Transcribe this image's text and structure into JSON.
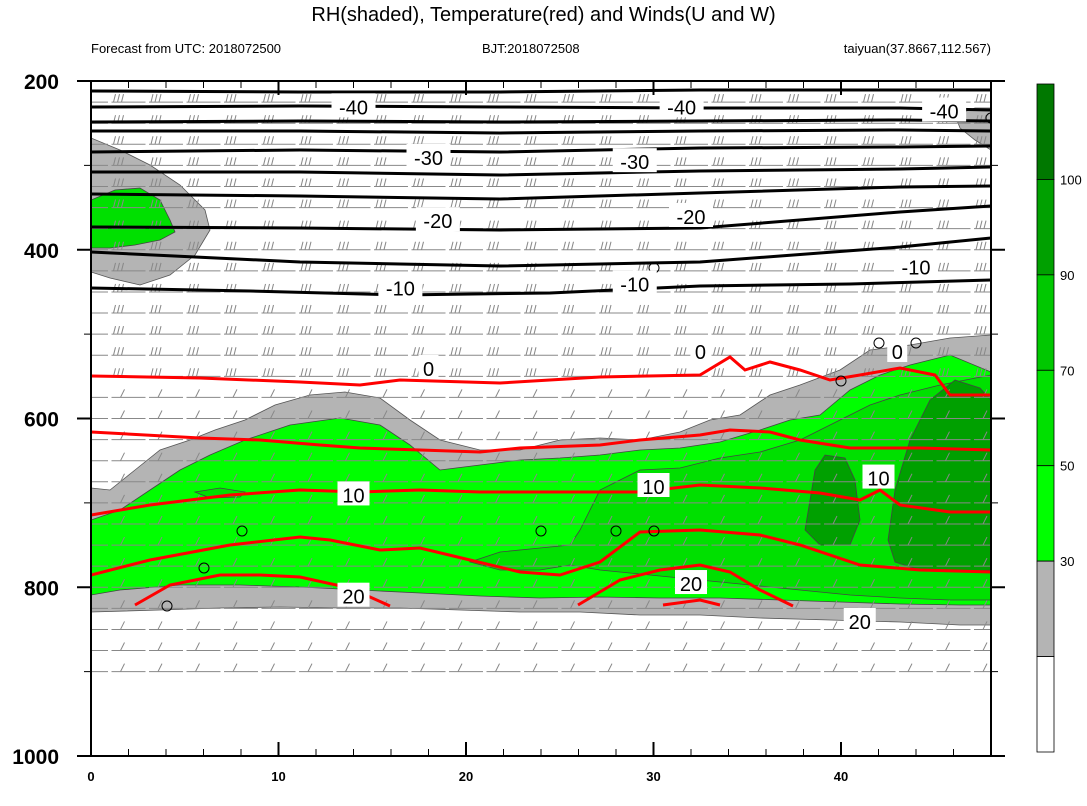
{
  "chart_data": {
    "type": "contour",
    "title": "RH(shaded), Temperature(red) and Winds(U and W)",
    "subtitle_left": "Forecast from UTC: 2018072500",
    "subtitle_center": "BJT:2018072508",
    "subtitle_right": "taiyuan(37.8667,112.567)",
    "x_ticks": [
      "0",
      "10",
      "20",
      "30",
      "40"
    ],
    "y_ticks": [
      "200",
      "400",
      "600",
      "800",
      "1000"
    ],
    "xlim": [
      0,
      48
    ],
    "ylim_pressure_hpa": [
      200,
      1000
    ],
    "colorbar": {
      "levels": [
        "30",
        "50",
        "70",
        "90",
        "100"
      ],
      "colors": [
        "#ffffff",
        "#b4b4b4",
        "#00ff00",
        "#00e000",
        "#00c800",
        "#00a000",
        "#007800"
      ]
    },
    "temperature_contour_labels": {
      "black": [
        {
          "text": "-40",
          "x": 14,
          "p": 230
        },
        {
          "text": "-40",
          "x": 31.5,
          "p": 230
        },
        {
          "text": "-40",
          "x": 45.5,
          "p": 235
        },
        {
          "text": "-30",
          "x": 18,
          "p": 290
        },
        {
          "text": "-30",
          "x": 29,
          "p": 295
        },
        {
          "text": "-20",
          "x": 18.5,
          "p": 365
        },
        {
          "text": "-20",
          "x": 32,
          "p": 360
        },
        {
          "text": "-10",
          "x": 16.5,
          "p": 445
        },
        {
          "text": "-10",
          "x": 29,
          "p": 440
        },
        {
          "text": "-10",
          "x": 44,
          "p": 420
        },
        {
          "text": "0",
          "x": 18,
          "p": 540
        },
        {
          "text": "0",
          "x": 32.5,
          "p": 520
        },
        {
          "text": "0",
          "x": 43,
          "p": 520
        }
      ],
      "red": [
        {
          "text": "10",
          "x": 14,
          "p": 690
        },
        {
          "text": "10",
          "x": 30,
          "p": 680
        },
        {
          "text": "10",
          "x": 42,
          "p": 670
        },
        {
          "text": "20",
          "x": 14,
          "p": 810
        },
        {
          "text": "20",
          "x": 32,
          "p": 795
        },
        {
          "text": "20",
          "x": 41,
          "p": 840
        }
      ]
    }
  }
}
